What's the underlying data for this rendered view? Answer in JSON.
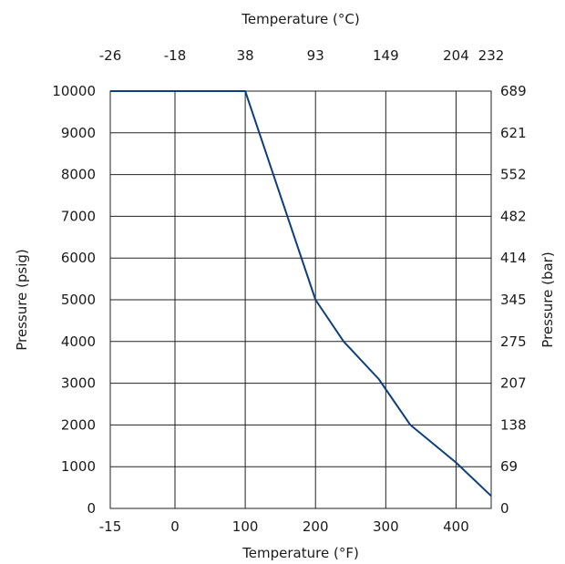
{
  "chart_data": {
    "type": "line",
    "title": "",
    "xlabel": "Temperature (°F)",
    "x2label": "Temperature (°C)",
    "ylabel": "Pressure (psig)",
    "y2label": "Pressure (bar)",
    "xlim": [
      -15,
      450
    ],
    "ylim": [
      0,
      10000
    ],
    "grid": true,
    "x_ticks": [
      -15,
      0,
      100,
      200,
      300,
      400
    ],
    "x2_ticks": [
      -26,
      -18,
      38,
      93,
      149,
      204,
      232
    ],
    "y_ticks": [
      0,
      1000,
      2000,
      3000,
      4000,
      5000,
      6000,
      7000,
      8000,
      9000,
      10000
    ],
    "y2_ticks": [
      0,
      69,
      138,
      207,
      275,
      345,
      414,
      482,
      552,
      621,
      689
    ],
    "series": [
      {
        "name": "",
        "color": "#0b3f7e",
        "x": [
          -15,
          100,
          200,
          240,
          290,
          335,
          400,
          450
        ],
        "y": [
          10000,
          10000,
          5000,
          4000,
          3100,
          2000,
          1100,
          300
        ]
      }
    ]
  }
}
